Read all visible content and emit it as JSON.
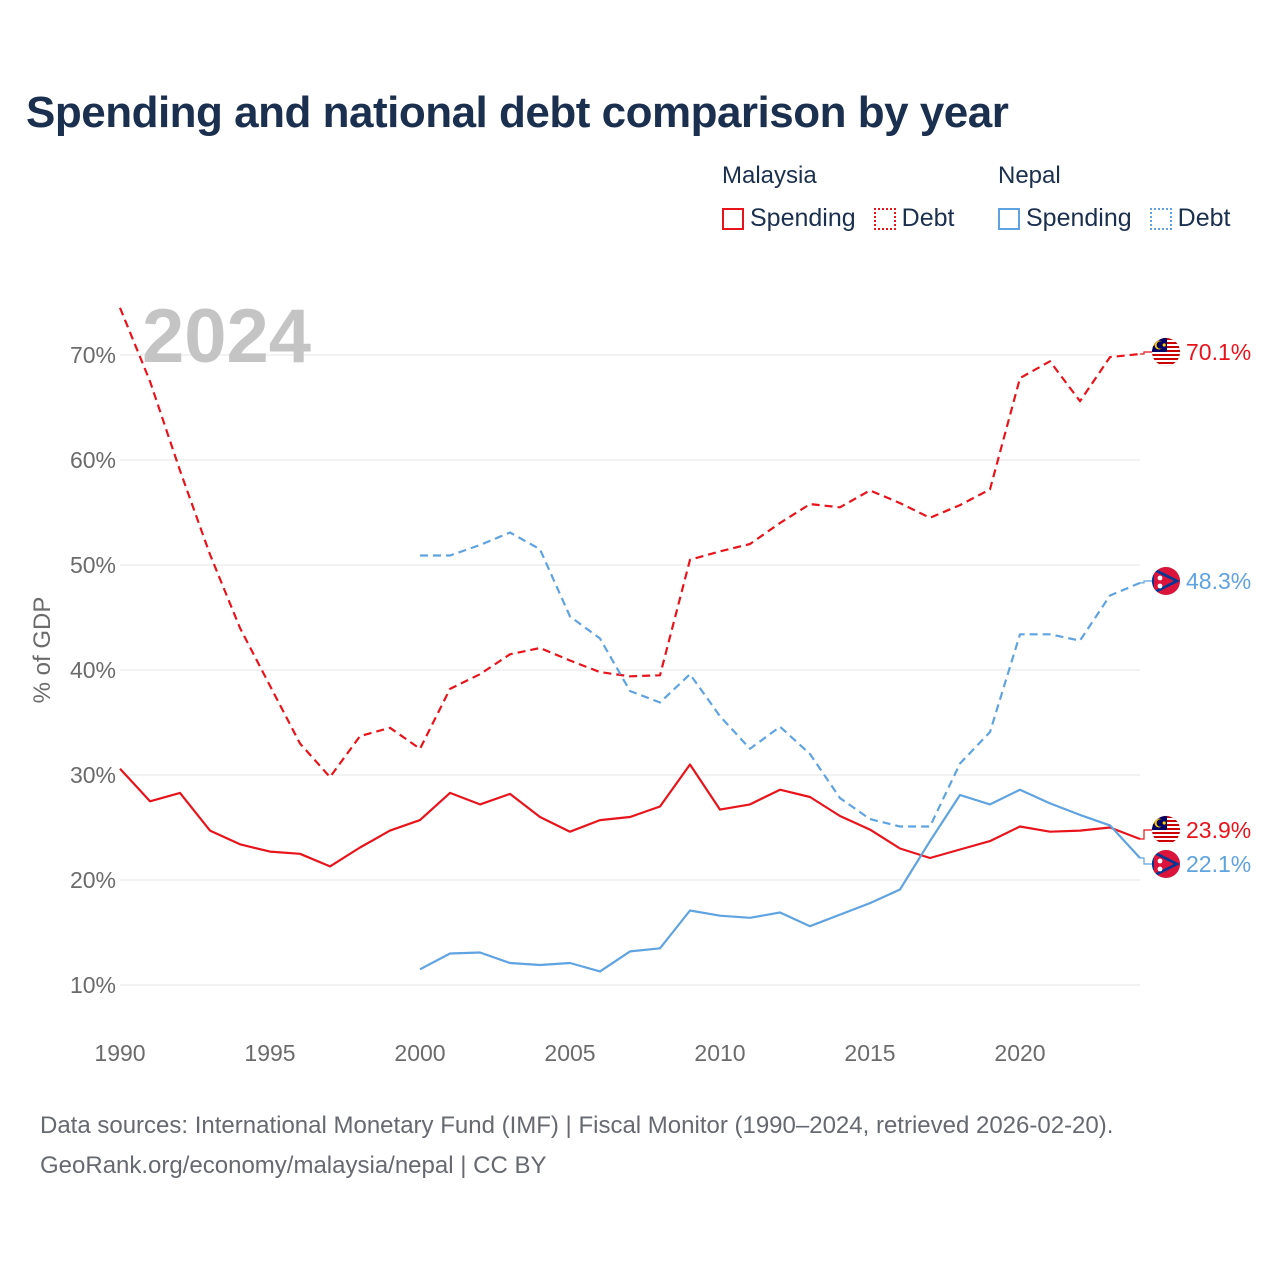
{
  "title": "Spending and national debt comparison by year",
  "legend": {
    "malaysia": {
      "country": "Malaysia",
      "spending": "Spending",
      "debt": "Debt"
    },
    "nepal": {
      "country": "Nepal",
      "spending": "Spending",
      "debt": "Debt"
    }
  },
  "colors": {
    "malaysia": "#e8141c",
    "nepal": "#5fa3e0",
    "grid": "#e6e6e6",
    "axis_text": "#6b6b6b",
    "year_watermark": "#c4c4c4"
  },
  "footer": {
    "line1": "Data sources: International Monetary Fund (IMF) | Fiscal Monitor (1990–2024, retrieved 2026-02-20).",
    "line2": "GeoRank.org/economy/malaysia/nepal | CC BY"
  },
  "chart_data": {
    "type": "line",
    "title": "Spending and national debt comparison by year",
    "year_label": "2024",
    "xlabel": "",
    "ylabel": "% of GDP",
    "xlim": [
      1990,
      2024
    ],
    "ylim": [
      8,
      75
    ],
    "x_ticks": [
      "1990",
      "1995",
      "2000",
      "2005",
      "2010",
      "2015",
      "2020"
    ],
    "x_tick_values": [
      1990,
      1995,
      2000,
      2005,
      2010,
      2015,
      2020
    ],
    "y_ticks": [
      "10%",
      "20%",
      "30%",
      "40%",
      "50%",
      "60%",
      "70%"
    ],
    "y_tick_values": [
      10,
      20,
      30,
      40,
      50,
      60,
      70
    ],
    "grid": true,
    "series": [
      {
        "name": "Malaysia Debt",
        "country": "malaysia",
        "style": "dashed",
        "x": [
          1990,
          1991,
          1992,
          1993,
          1994,
          1995,
          1996,
          1997,
          1998,
          1999,
          2000,
          2001,
          2002,
          2003,
          2004,
          2005,
          2006,
          2007,
          2008,
          2009,
          2010,
          2011,
          2012,
          2013,
          2014,
          2015,
          2016,
          2017,
          2018,
          2019,
          2020,
          2021,
          2022,
          2023,
          2024
        ],
        "values": [
          74.5,
          67.5,
          59.0,
          51.0,
          44.0,
          38.5,
          33.0,
          29.8,
          33.7,
          34.5,
          32.5,
          38.2,
          39.6,
          41.5,
          42.1,
          40.9,
          39.8,
          39.4,
          39.5,
          50.5,
          51.3,
          52.0,
          54.0,
          55.8,
          55.5,
          57.1,
          55.9,
          54.5,
          55.7,
          57.2,
          67.8,
          69.4,
          65.6,
          69.8,
          70.1
        ],
        "end_label": "70.1%"
      },
      {
        "name": "Malaysia Spending",
        "country": "malaysia",
        "style": "solid",
        "x": [
          1990,
          1991,
          1992,
          1993,
          1994,
          1995,
          1996,
          1997,
          1998,
          1999,
          2000,
          2001,
          2002,
          2003,
          2004,
          2005,
          2006,
          2007,
          2008,
          2009,
          2010,
          2011,
          2012,
          2013,
          2014,
          2015,
          2016,
          2017,
          2018,
          2019,
          2020,
          2021,
          2022,
          2023,
          2024
        ],
        "values": [
          30.6,
          27.5,
          28.3,
          24.7,
          23.4,
          22.7,
          22.5,
          21.3,
          23.1,
          24.7,
          25.7,
          28.3,
          27.2,
          28.2,
          26.0,
          24.6,
          25.7,
          26.0,
          27.0,
          31.0,
          26.7,
          27.2,
          28.6,
          27.9,
          26.1,
          24.8,
          23.0,
          22.1,
          22.9,
          23.7,
          25.1,
          24.6,
          24.7,
          25.0,
          23.9
        ],
        "end_label": "23.9%"
      },
      {
        "name": "Nepal Debt",
        "country": "nepal",
        "style": "dashed",
        "x": [
          2000,
          2001,
          2002,
          2003,
          2004,
          2005,
          2006,
          2007,
          2008,
          2009,
          2010,
          2011,
          2012,
          2013,
          2014,
          2015,
          2016,
          2017,
          2018,
          2019,
          2020,
          2021,
          2022,
          2023,
          2024
        ],
        "values": [
          50.9,
          50.9,
          51.9,
          53.1,
          51.5,
          45.1,
          43.0,
          38.0,
          36.9,
          39.6,
          35.6,
          32.5,
          34.6,
          32.0,
          27.8,
          25.8,
          25.1,
          25.1,
          31.1,
          34.1,
          43.4,
          43.4,
          42.8,
          47.1,
          48.3
        ],
        "end_label": "48.3%"
      },
      {
        "name": "Nepal Spending",
        "country": "nepal",
        "style": "solid",
        "x": [
          2000,
          2001,
          2002,
          2003,
          2004,
          2005,
          2006,
          2007,
          2008,
          2009,
          2010,
          2011,
          2012,
          2013,
          2014,
          2015,
          2016,
          2017,
          2018,
          2019,
          2020,
          2021,
          2022,
          2023,
          2024
        ],
        "values": [
          11.5,
          13.0,
          13.1,
          12.1,
          11.9,
          12.1,
          11.3,
          13.2,
          13.5,
          17.1,
          16.6,
          16.4,
          16.9,
          15.6,
          16.7,
          17.8,
          19.1,
          23.7,
          28.1,
          27.2,
          28.6,
          27.3,
          26.2,
          25.2,
          22.1
        ],
        "end_label": "22.1%"
      }
    ]
  }
}
